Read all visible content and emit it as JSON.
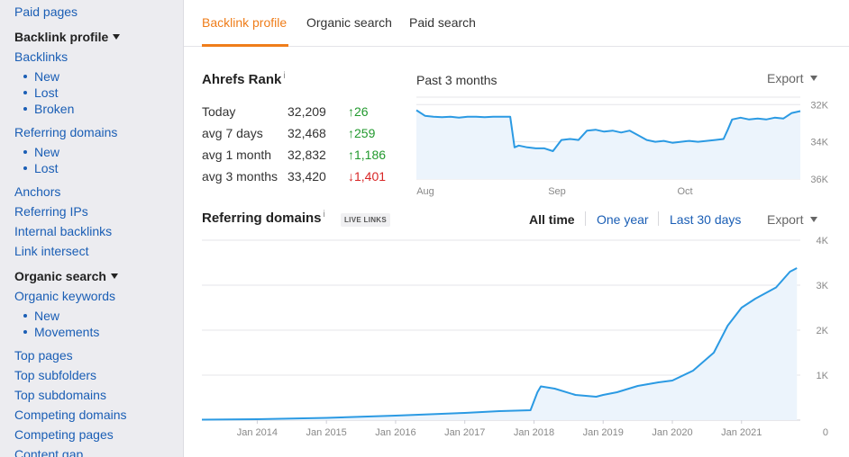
{
  "sidebar": {
    "paid_pages": "Paid pages",
    "backlink_profile": "Backlink profile",
    "backlinks": "Backlinks",
    "backlinks_new": "New",
    "backlinks_lost": "Lost",
    "backlinks_broken": "Broken",
    "referring_domains": "Referring domains",
    "rd_new": "New",
    "rd_lost": "Lost",
    "anchors": "Anchors",
    "referring_ips": "Referring IPs",
    "internal_backlinks": "Internal backlinks",
    "link_intersect": "Link intersect",
    "organic_search": "Organic search",
    "organic_keywords": "Organic keywords",
    "ok_new": "New",
    "ok_movements": "Movements",
    "top_pages": "Top pages",
    "top_subfolders": "Top subfolders",
    "top_subdomains": "Top subdomains",
    "competing_domains": "Competing domains",
    "competing_pages": "Competing pages",
    "content_gap": "Content gap"
  },
  "tabs": {
    "backlink_profile": "Backlink profile",
    "organic_search": "Organic search",
    "paid_search": "Paid search"
  },
  "ahrefs_rank": {
    "title": "Ahrefs Rank",
    "info": "i",
    "rows": [
      {
        "label": "Today",
        "value": "32,209",
        "delta": "26",
        "direction": "up"
      },
      {
        "label": "avg 7 days",
        "value": "32,468",
        "delta": "259",
        "direction": "up"
      },
      {
        "label": "avg 1 month",
        "value": "32,832",
        "delta": "1,186",
        "direction": "up"
      },
      {
        "label": "avg 3 months",
        "value": "33,420",
        "delta": "1,401",
        "direction": "down"
      }
    ],
    "up_arrow": "↑",
    "down_arrow": "↓"
  },
  "rank_chart_header": {
    "subtitle": "Past 3 months",
    "export": "Export"
  },
  "referring_domains": {
    "title": "Referring domains",
    "info": "i",
    "badge": "LIVE LINKS",
    "ranges": {
      "all_time": "All time",
      "one_year": "One year",
      "last_30_days": "Last 30 days"
    },
    "export": "Export"
  },
  "colors": {
    "accent": "#ef7d1a",
    "link": "#1a5eb5",
    "line": "#2b9ae3",
    "fill": "#ecf4fc",
    "up": "#22992e",
    "down": "#d82626"
  },
  "chart_data": [
    {
      "type": "line",
      "title": "",
      "x_ticks": [
        "Aug",
        "Sep",
        "Oct"
      ],
      "y_ticks": [
        "32K",
        "34K",
        "36K"
      ],
      "ylim": [
        36000,
        31600
      ],
      "y_inverted": true,
      "x": [
        0,
        2,
        4,
        6,
        8,
        10,
        12,
        14,
        16,
        18,
        20,
        22,
        23,
        24,
        26,
        28,
        30,
        32,
        34,
        36,
        38,
        40,
        42,
        44,
        46,
        48,
        50,
        52,
        54,
        56,
        58,
        60,
        62,
        64,
        66,
        68,
        70,
        72,
        73,
        74,
        76,
        78,
        80,
        82,
        84,
        86,
        88,
        90
      ],
      "values": [
        32300,
        32600,
        32650,
        32680,
        32650,
        32700,
        32650,
        32650,
        32680,
        32650,
        32650,
        32650,
        34300,
        34200,
        34300,
        34350,
        34350,
        34500,
        33900,
        33850,
        33900,
        33400,
        33350,
        33450,
        33400,
        33500,
        33400,
        33650,
        33900,
        34000,
        33950,
        34050,
        34000,
        33950,
        34000,
        33950,
        33900,
        33850,
        33350,
        32800,
        32700,
        32800,
        32750,
        32800,
        32700,
        32750,
        32450,
        32350
      ],
      "grid": true
    },
    {
      "type": "area",
      "title": "",
      "x_ticks": [
        "Jan 2014",
        "Jan 2015",
        "Jan 2016",
        "Jan 2017",
        "Jan 2018",
        "Jan 2019",
        "Jan 2020",
        "Jan 2021"
      ],
      "y_ticks": [
        "0",
        "1K",
        "2K",
        "3K",
        "4K"
      ],
      "ylim": [
        0,
        4000
      ],
      "x": [
        2013.2,
        2014,
        2015,
        2016,
        2016.5,
        2017,
        2017.5,
        2017.95,
        2018.05,
        2018.1,
        2018.3,
        2018.6,
        2018.9,
        2019.0,
        2019.2,
        2019.5,
        2019.8,
        2020.0,
        2020.3,
        2020.6,
        2020.8,
        2021.0,
        2021.2,
        2021.5,
        2021.7,
        2021.8
      ],
      "values": [
        10,
        20,
        50,
        100,
        130,
        160,
        200,
        220,
        620,
        750,
        700,
        560,
        520,
        560,
        620,
        760,
        840,
        880,
        1100,
        1500,
        2100,
        2500,
        2700,
        2950,
        3300,
        3380
      ],
      "grid": true
    }
  ]
}
